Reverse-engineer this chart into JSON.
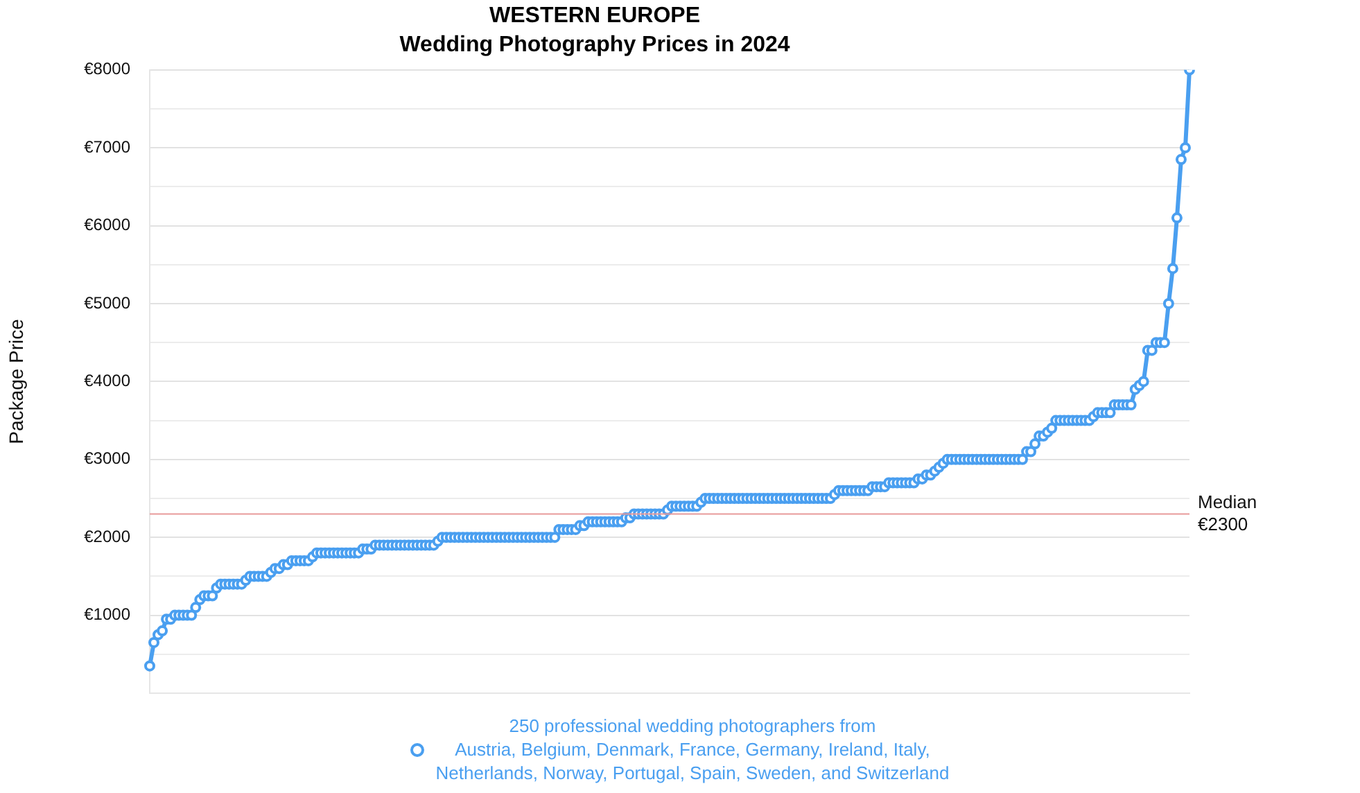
{
  "chart_data": {
    "type": "line",
    "title": "WESTERN EUROPE",
    "subtitle": "Wedding Photography Prices in 2024",
    "ylabel": "Package Price",
    "categories": [
      null,
      null,
      null,
      null,
      null,
      null,
      null,
      null,
      null,
      null,
      null,
      null,
      null,
      null,
      null,
      null,
      null,
      null,
      null,
      null,
      null,
      null,
      null,
      null,
      null,
      null,
      null,
      null,
      null,
      null,
      null,
      null,
      null,
      null,
      null,
      null,
      null,
      null,
      null,
      null,
      null,
      null,
      null,
      null,
      null,
      null,
      null,
      null,
      null,
      null,
      null,
      null,
      null,
      null,
      null,
      null,
      null,
      null,
      null,
      null,
      null,
      null,
      null,
      null,
      null,
      null,
      null,
      null,
      null,
      null,
      null,
      null,
      null,
      null,
      null,
      null,
      null,
      null,
      null,
      null,
      null,
      null,
      null,
      null,
      null,
      null,
      null,
      null,
      null,
      null,
      null,
      null,
      null,
      null,
      null,
      null,
      null,
      null,
      null,
      null,
      null,
      null,
      null,
      null,
      null,
      null,
      null,
      null,
      null,
      null,
      null,
      null,
      null,
      null,
      null,
      null,
      null,
      null,
      null,
      null,
      null,
      null,
      null,
      null,
      null,
      null,
      null,
      null,
      null,
      null,
      null,
      null,
      null,
      null,
      null,
      null,
      null,
      null,
      null,
      null,
      null,
      null,
      null,
      null,
      null,
      null,
      null,
      null,
      null,
      null,
      null,
      null,
      null,
      null,
      null,
      null,
      null,
      null,
      null,
      null,
      null,
      null,
      null,
      null,
      null,
      null,
      null,
      null,
      null,
      null,
      null,
      null,
      null,
      null,
      null,
      null,
      null,
      null,
      null,
      null,
      null,
      null,
      null,
      null,
      null,
      null,
      null,
      null,
      null,
      null,
      null,
      null,
      null,
      null,
      null,
      null,
      null,
      null,
      null,
      null,
      null,
      null,
      null,
      null,
      null,
      null,
      null,
      null,
      null,
      null,
      null,
      null,
      null,
      null,
      null,
      null,
      null,
      null,
      null,
      null,
      null,
      null,
      null,
      null,
      null,
      null,
      null,
      null,
      null,
      null,
      null,
      null,
      null,
      null,
      null,
      null,
      null,
      null,
      null,
      null,
      null,
      null,
      null,
      null,
      null,
      null,
      null,
      null,
      null,
      null
    ],
    "series": [
      {
        "name": "250 professional wedding photographers from\nAustria, Belgium, Denmark, France, Germany, Ireland, Italy,\nNetherlands, Norway, Portugal, Spain, Sweden, and Switzerland",
        "color": "#4a9ff0",
        "values": [
          350,
          650,
          750,
          800,
          950,
          950,
          1000,
          1000,
          1000,
          1000,
          1000,
          1100,
          1200,
          1250,
          1250,
          1250,
          1350,
          1400,
          1400,
          1400,
          1400,
          1400,
          1400,
          1450,
          1500,
          1500,
          1500,
          1500,
          1500,
          1550,
          1600,
          1600,
          1650,
          1650,
          1700,
          1700,
          1700,
          1700,
          1700,
          1750,
          1800,
          1800,
          1800,
          1800,
          1800,
          1800,
          1800,
          1800,
          1800,
          1800,
          1800,
          1850,
          1850,
          1850,
          1900,
          1900,
          1900,
          1900,
          1900,
          1900,
          1900,
          1900,
          1900,
          1900,
          1900,
          1900,
          1900,
          1900,
          1900,
          1950,
          2000,
          2000,
          2000,
          2000,
          2000,
          2000,
          2000,
          2000,
          2000,
          2000,
          2000,
          2000,
          2000,
          2000,
          2000,
          2000,
          2000,
          2000,
          2000,
          2000,
          2000,
          2000,
          2000,
          2000,
          2000,
          2000,
          2000,
          2000,
          2100,
          2100,
          2100,
          2100,
          2100,
          2150,
          2150,
          2200,
          2200,
          2200,
          2200,
          2200,
          2200,
          2200,
          2200,
          2200,
          2250,
          2250,
          2300,
          2300,
          2300,
          2300,
          2300,
          2300,
          2300,
          2300,
          2350,
          2400,
          2400,
          2400,
          2400,
          2400,
          2400,
          2400,
          2450,
          2500,
          2500,
          2500,
          2500,
          2500,
          2500,
          2500,
          2500,
          2500,
          2500,
          2500,
          2500,
          2500,
          2500,
          2500,
          2500,
          2500,
          2500,
          2500,
          2500,
          2500,
          2500,
          2500,
          2500,
          2500,
          2500,
          2500,
          2500,
          2500,
          2500,
          2500,
          2550,
          2600,
          2600,
          2600,
          2600,
          2600,
          2600,
          2600,
          2600,
          2650,
          2650,
          2650,
          2650,
          2700,
          2700,
          2700,
          2700,
          2700,
          2700,
          2700,
          2750,
          2750,
          2800,
          2800,
          2850,
          2900,
          2950,
          3000,
          3000,
          3000,
          3000,
          3000,
          3000,
          3000,
          3000,
          3000,
          3000,
          3000,
          3000,
          3000,
          3000,
          3000,
          3000,
          3000,
          3000,
          3000,
          3100,
          3100,
          3200,
          3300,
          3300,
          3350,
          3400,
          3500,
          3500,
          3500,
          3500,
          3500,
          3500,
          3500,
          3500,
          3500,
          3550,
          3600,
          3600,
          3600,
          3600,
          3700,
          3700,
          3700,
          3700,
          3700,
          3900,
          3950,
          4000,
          4400,
          4400,
          4500,
          4500,
          4500,
          5000,
          5450,
          6100,
          6850,
          7000,
          8000
        ]
      }
    ],
    "ylim": [
      0,
      8000
    ],
    "yticks": [
      {
        "value": 0,
        "label": null
      },
      {
        "value": 500,
        "label": null
      },
      {
        "value": 1000,
        "label": "€1000"
      },
      {
        "value": 1500,
        "label": null
      },
      {
        "value": 2000,
        "label": "€2000"
      },
      {
        "value": 2500,
        "label": null
      },
      {
        "value": 3000,
        "label": "€3000"
      },
      {
        "value": 3500,
        "label": null
      },
      {
        "value": 4000,
        "label": "€4000"
      },
      {
        "value": 4500,
        "label": null
      },
      {
        "value": 5000,
        "label": "€5000"
      },
      {
        "value": 5500,
        "label": null
      },
      {
        "value": 6000,
        "label": "€6000"
      },
      {
        "value": 6500,
        "label": null
      },
      {
        "value": 7000,
        "label": "€7000"
      },
      {
        "value": 7500,
        "label": null
      },
      {
        "value": 8000,
        "label": "€8000"
      }
    ],
    "ref_lines": [
      {
        "axis": "y",
        "value": 2300,
        "label": "Median €2300",
        "color": "#e89a9a"
      }
    ],
    "grid": "y",
    "legend": "bottom",
    "marker": "circle",
    "line_style": "solid"
  }
}
